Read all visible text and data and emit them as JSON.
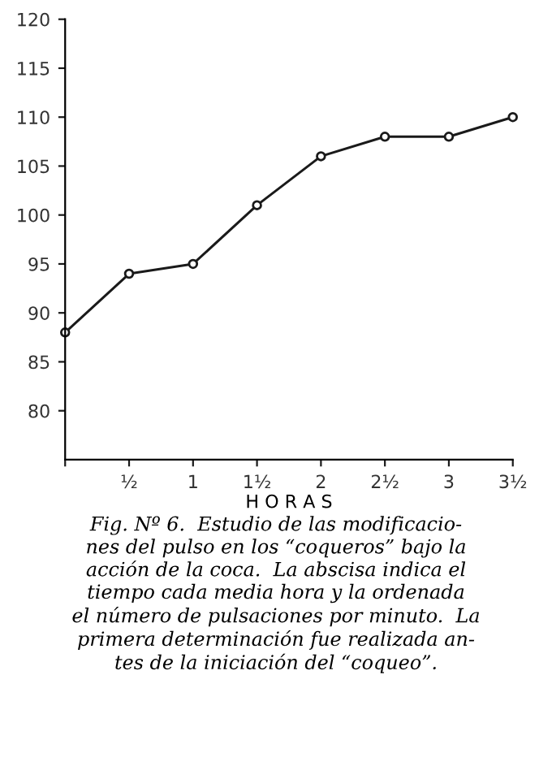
{
  "chart_data": {
    "type": "line",
    "x": [
      0,
      0.5,
      1,
      1.5,
      2,
      2.5,
      3,
      3.5
    ],
    "series": [
      {
        "color": "#1a1a1a",
        "values": [
          88,
          94,
          95,
          101,
          106,
          108,
          108,
          110
        ]
      }
    ],
    "xlabel": "H O R A S",
    "xlim": [
      0,
      3.5
    ],
    "xticks": [
      {
        "value": 0,
        "label": null
      },
      {
        "value": 0.5,
        "label": "½"
      },
      {
        "value": 1,
        "label": "1"
      },
      {
        "value": 1.5,
        "label": "1½"
      },
      {
        "value": 2,
        "label": "2"
      },
      {
        "value": 2.5,
        "label": "2½"
      },
      {
        "value": 3,
        "label": "3"
      },
      {
        "value": 3.5,
        "label": "3½"
      }
    ],
    "ylim": [
      75,
      120
    ],
    "yticks": [
      80,
      85,
      90,
      95,
      100,
      105,
      110,
      115,
      120
    ],
    "grid": false,
    "legend": false,
    "marker": "circle",
    "line_style": "solid",
    "annotations": [
      "Fig. Nº 6.  Estudio de las modificacio-\nnes del pulso en los “coqueros” bajo la\nacción de la coca.  La abscisa indica el\ntiempo cada media hora y la ordenada\nel número de pulsaciones por minuto.  La\nprimera determinación fue realizada an-\ntes de la iniciación del “coqueo”."
    ]
  }
}
